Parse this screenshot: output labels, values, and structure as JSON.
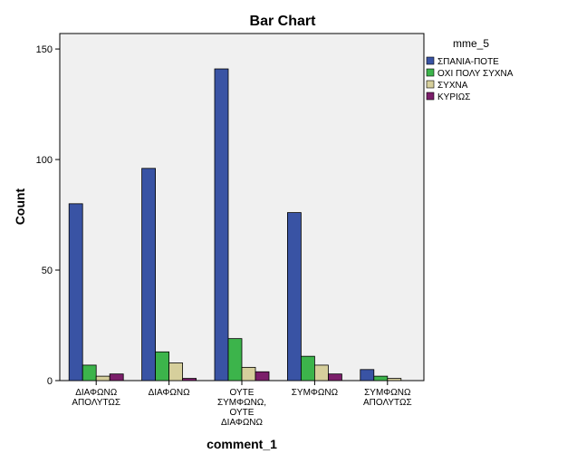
{
  "chart_data": {
    "type": "bar",
    "title": "Bar Chart",
    "xlabel": "comment_1",
    "ylabel": "Count",
    "ylim": [
      0,
      157
    ],
    "yticks": [
      "0",
      "50",
      "100",
      "150"
    ],
    "categories": [
      [
        "ΔΙΑΦΩΝΩ",
        "ΑΠΟΛΥΤΩΣ"
      ],
      [
        "ΔΙΑΦΩΝΩ"
      ],
      [
        "ΟΥΤΕ",
        "ΣΥΜΦΩΝΩ,",
        "ΟΥΤΕ",
        "ΔΙΑΦΩΝΩ"
      ],
      [
        "ΣΥΜΦΩΝΩ"
      ],
      [
        "ΣΥΜΦΩΝΩ",
        "ΑΠΟΛΥΤΩΣ"
      ]
    ],
    "legend_title": "mme_5",
    "legend_position": "right",
    "series": [
      {
        "name": "ΣΠΑΝΙΑ-ΠΟΤΕ",
        "color": "#3953a4",
        "values": [
          80,
          96,
          141,
          76,
          5
        ]
      },
      {
        "name": "ΟΧΙ ΠΟΛΥ ΣΥΧΝΑ",
        "color": "#3cb44b",
        "values": [
          7,
          13,
          19,
          11,
          2
        ]
      },
      {
        "name": "ΣΥΧΝΑ",
        "color": "#d6cf9c",
        "values": [
          2,
          8,
          6,
          7,
          1
        ]
      },
      {
        "name": "ΚΥΡΙΩΣ",
        "color": "#7b1e6a",
        "values": [
          3,
          1,
          4,
          3,
          0
        ]
      }
    ],
    "plot_background": "#f0f0f0",
    "grid": false
  }
}
